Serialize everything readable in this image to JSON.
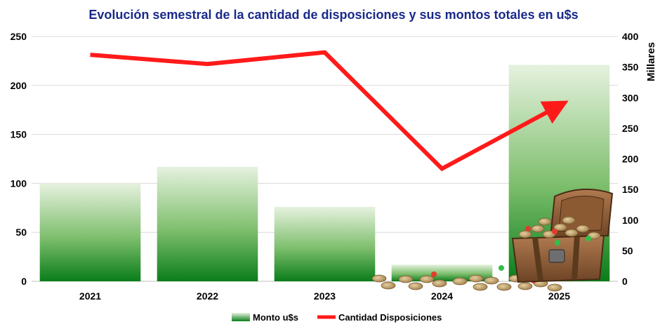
{
  "chart_data": {
    "type": "bar",
    "title": "Evolución semestral de la cantidad de disposiciones y sus montos totales en u$s",
    "categories": [
      "2021",
      "2022",
      "2023",
      "2024",
      "2025"
    ],
    "y_left": {
      "ticks": [
        "0",
        "50",
        "100",
        "150",
        "200",
        "250"
      ],
      "ylim": [
        0,
        250
      ]
    },
    "y_right": {
      "label": "Millares",
      "ticks": [
        "0",
        "50",
        "100",
        "150",
        "200",
        "250",
        "300",
        "350",
        "400"
      ],
      "ylim": [
        0,
        400
      ]
    },
    "series": [
      {
        "name": "Monto u$s",
        "type": "bar",
        "axis": "left",
        "values": [
          100,
          117,
          76,
          17,
          221
        ]
      },
      {
        "name": "Cantidad Disposiciones",
        "type": "line",
        "axis": "right",
        "values": [
          370,
          355,
          374,
          184,
          287
        ]
      }
    ],
    "grid": true,
    "legend_position": "bottom",
    "colors": {
      "bar_dark": "#0a7d1a",
      "bar_light": "#e6f2df",
      "line": "#ff1a1a",
      "title": "#1a2a8a",
      "grid": "#d9d9d9"
    },
    "decoration": "treasure-chest-with-coins"
  }
}
